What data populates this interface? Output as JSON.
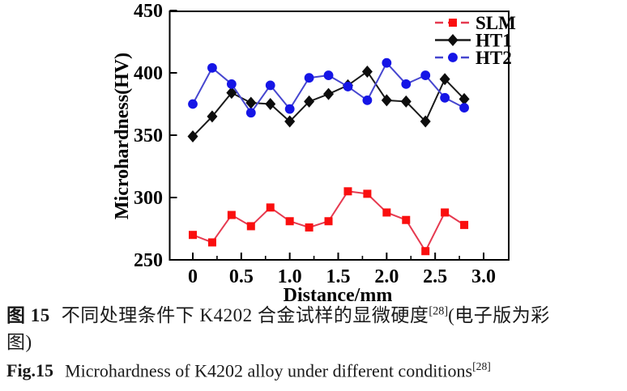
{
  "figure": {
    "caption_zh_prefix": "图 15",
    "caption_zh_text": "不同处理条件下 K4202 合金试样的显微硬度",
    "caption_zh_sup": "[28]",
    "caption_zh_tail": "(电子版为彩",
    "caption_zh_line2": "图)",
    "caption_en_prefix": "Fig.15",
    "caption_en_text": "Microhardness of K4202 alloy under different conditions",
    "caption_en_sup": "[28]"
  },
  "chart_data": {
    "type": "line",
    "title": "",
    "xlabel": "Distance/mm",
    "ylabel": "Microhardness(HV)",
    "xlim": [
      -0.24,
      3.26
    ],
    "ylim": [
      250,
      450
    ],
    "xticks": [
      0,
      0.5,
      1.0,
      1.5,
      2.0,
      2.5,
      3.0
    ],
    "xtick_labels": [
      "0",
      "0.5",
      "1.0",
      "1.5",
      "2.0",
      "2.5",
      "3.0"
    ],
    "yticks": [
      250,
      300,
      350,
      400,
      450
    ],
    "minor_xtick_step": 0.25,
    "grid": false,
    "legend_position": "top-right",
    "axis_color": "#000000",
    "x": [
      0,
      0.2,
      0.4,
      0.6,
      0.8,
      1.0,
      1.2,
      1.4,
      1.6,
      1.8,
      2.0,
      2.2,
      2.4,
      2.6,
      2.8
    ],
    "series": [
      {
        "name": "SLM",
        "marker": "square",
        "color": "#fa0f0f",
        "line_color": "#e63a50",
        "line_dash": true,
        "values": [
          270,
          264,
          286,
          277,
          292,
          281,
          276,
          281,
          305,
          303,
          288,
          282,
          257,
          288,
          278
        ]
      },
      {
        "name": "HT1",
        "marker": "diamond",
        "color": "#0d0d0d",
        "line_color": "#1a1a1a",
        "line_dash": false,
        "values": [
          349,
          365,
          384,
          376,
          375,
          361,
          377,
          383,
          390,
          401,
          378,
          377,
          361,
          395,
          379
        ]
      },
      {
        "name": "HT2",
        "marker": "circle",
        "color": "#1515e6",
        "line_color": "#4646cf",
        "line_dash": true,
        "values": [
          375,
          404,
          391,
          368,
          390,
          371,
          396,
          398,
          389,
          378,
          408,
          391,
          398,
          380,
          372
        ]
      }
    ]
  }
}
